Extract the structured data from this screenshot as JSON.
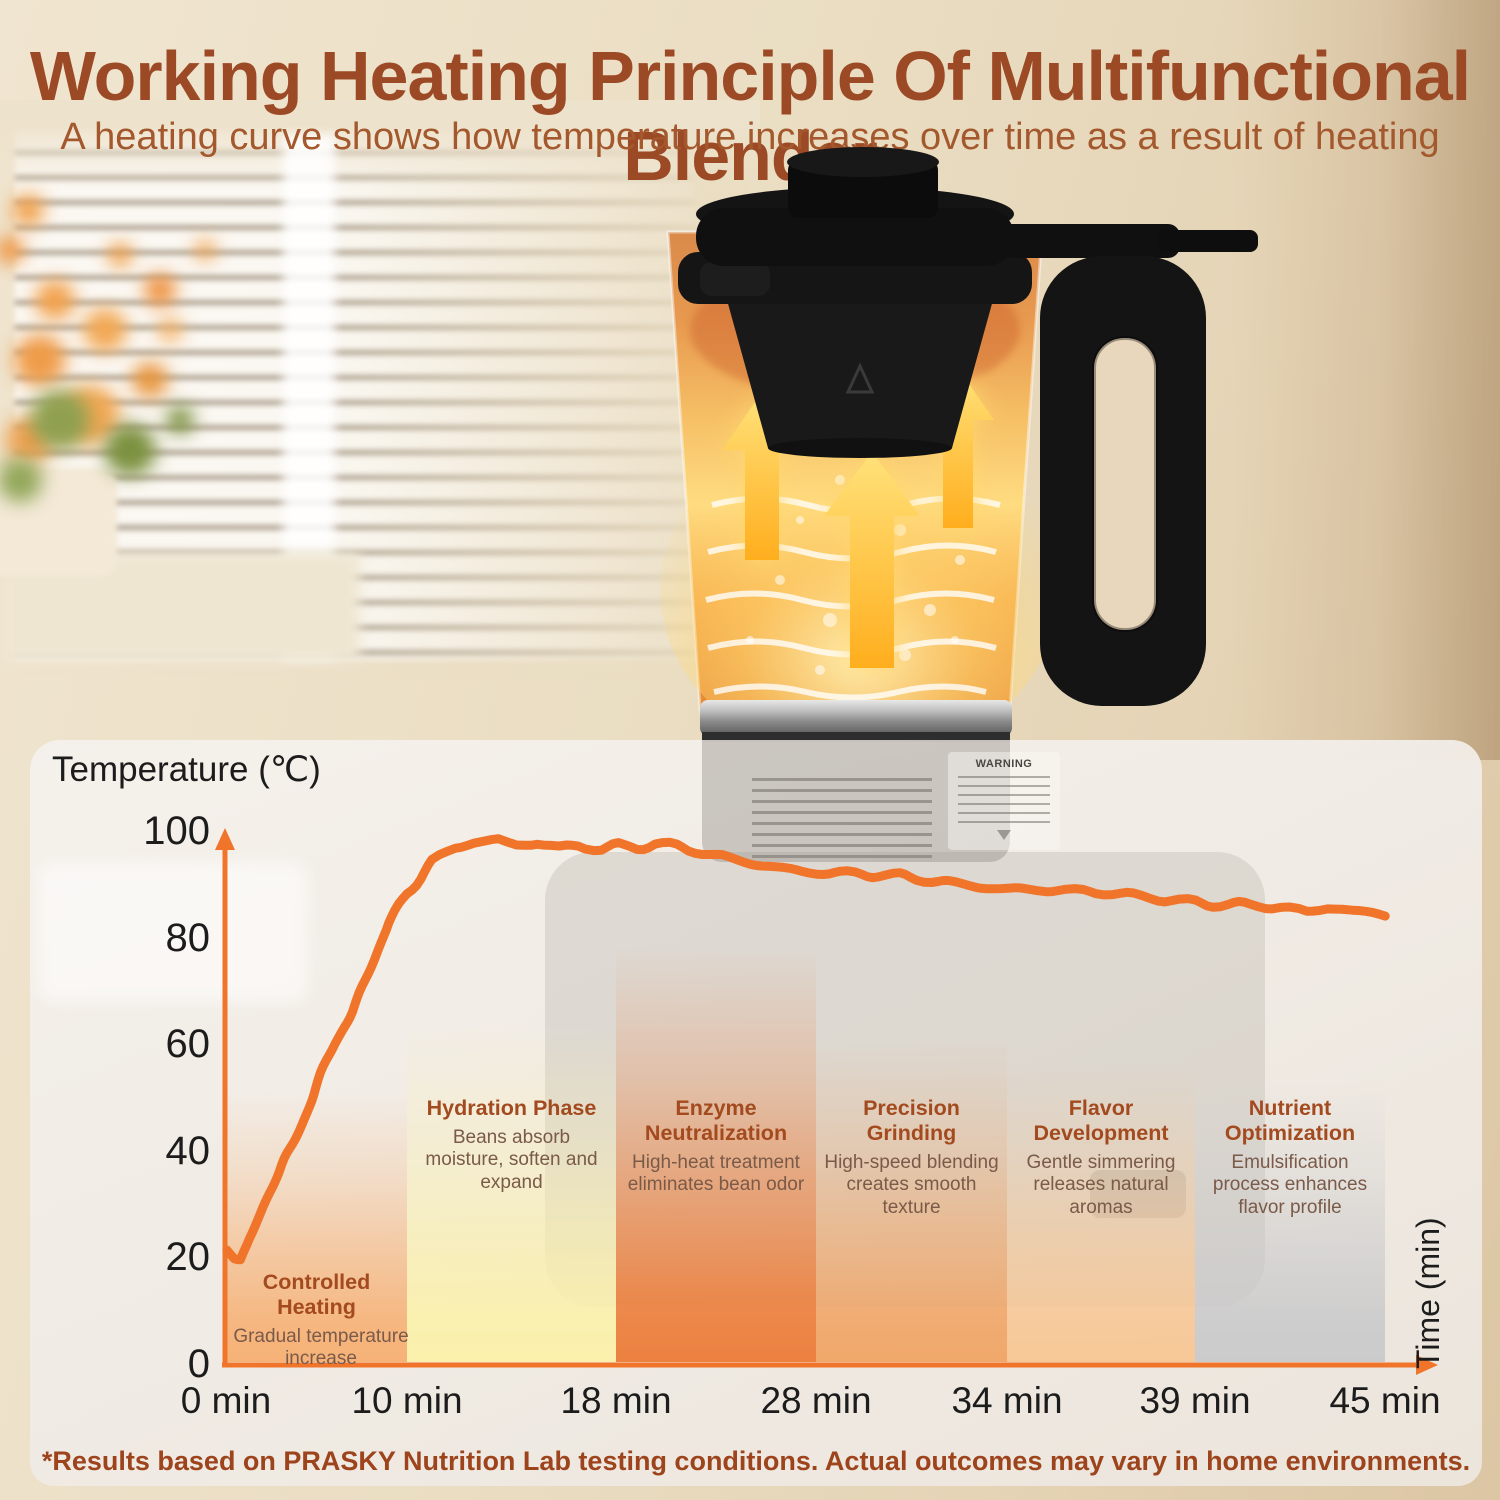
{
  "header": {
    "title": "Working Heating Principle Of Multifunctional Blender",
    "subtitle": "A heating curve shows how temperature increases over time as a result of heating"
  },
  "photo": {
    "warning_label": "WARNING"
  },
  "colors": {
    "accent_orange": "#F0752B",
    "title_brown": "#9C4A26",
    "phase_title_brown": "#A34A1F",
    "phase_desc_brown": "#7A5A49",
    "footer_brown": "#9D441D"
  },
  "chart_data": {
    "type": "line",
    "title": "",
    "ylabel": "Temperature (℃)",
    "xlabel": "Time (min)",
    "ylim": [
      0,
      100
    ],
    "grid": false,
    "legend": "none",
    "y_ticks": [
      100,
      80,
      60,
      40,
      20,
      0
    ],
    "x_tick_labels": [
      "0 min",
      "10 min",
      "18 min",
      "28 min",
      "34 min",
      "39 min",
      "45 min"
    ],
    "x_tick_minutes": [
      0,
      10,
      18,
      28,
      34,
      39,
      45
    ],
    "series": [
      {
        "name": "heating-curve",
        "color": "#F0752B",
        "points": [
          [
            0,
            21.5
          ],
          [
            0.4,
            20.3
          ],
          [
            0.8,
            20
          ],
          [
            1.2,
            22.5
          ],
          [
            2,
            29
          ],
          [
            3,
            36
          ],
          [
            4,
            44
          ],
          [
            5,
            52
          ],
          [
            6,
            60
          ],
          [
            7,
            67
          ],
          [
            8,
            75
          ],
          [
            9,
            83
          ],
          [
            10,
            89
          ],
          [
            11,
            94.5
          ],
          [
            11.8,
            96.8
          ],
          [
            12.6,
            97.8
          ],
          [
            13.5,
            98.2
          ],
          [
            14.2,
            97.4
          ],
          [
            15,
            98
          ],
          [
            15.8,
            97.2
          ],
          [
            16.6,
            97.9
          ],
          [
            17.4,
            97
          ],
          [
            18.2,
            97.6
          ],
          [
            19,
            97.1
          ],
          [
            20,
            97.6
          ],
          [
            21,
            96.9
          ],
          [
            22,
            96.3
          ],
          [
            23,
            95.3
          ],
          [
            24,
            94.8
          ],
          [
            25,
            94.2
          ],
          [
            26,
            93.6
          ],
          [
            27,
            93.1
          ],
          [
            28,
            92.6
          ],
          [
            29,
            92.1
          ],
          [
            30,
            91.7
          ],
          [
            31,
            91.2
          ],
          [
            32,
            90.7
          ],
          [
            33,
            90.1
          ],
          [
            34,
            89.6
          ],
          [
            35,
            89.1
          ],
          [
            36,
            88.6
          ],
          [
            37,
            88.2
          ],
          [
            38,
            87.7
          ],
          [
            39,
            87.1
          ],
          [
            40,
            86.6
          ],
          [
            41,
            86.1
          ],
          [
            42,
            85.3
          ],
          [
            42.5,
            84.7
          ],
          [
            43.2,
            85.7
          ],
          [
            44,
            85.2
          ],
          [
            45,
            84.9
          ]
        ]
      }
    ],
    "phases": [
      {
        "title": "Controlled Heating",
        "description": "Gradual temperature increase",
        "time_start": 0,
        "time_end": 10,
        "color": "#F6B277"
      },
      {
        "title": "Hydration Phase",
        "description": "Beans absorb moisture, soften and expand",
        "time_start": 10,
        "time_end": 18,
        "color": "#FBF0AC"
      },
      {
        "title": "Enzyme Neutralization",
        "description": "High-heat treatment eliminates bean odor",
        "time_start": 18,
        "time_end": 28,
        "color": "#EC8140"
      },
      {
        "title": "Precision Grinding",
        "description": "High-speed blending creates smooth texture",
        "time_start": 28,
        "time_end": 34,
        "color": "#F0A76A"
      },
      {
        "title": "Flavor Development",
        "description": "Gentle simmering releases natural aromas",
        "time_start": 34,
        "time_end": 39,
        "color": "#F7C897"
      },
      {
        "title": "Nutrient Optimization",
        "description": "Emulsification process enhances flavor profile",
        "time_start": 39,
        "time_end": 45,
        "color": "#CBCBCC"
      }
    ]
  },
  "footer": {
    "note": "*Results based on PRASKY Nutrition Lab testing conditions. Actual outcomes may vary in home environments."
  }
}
